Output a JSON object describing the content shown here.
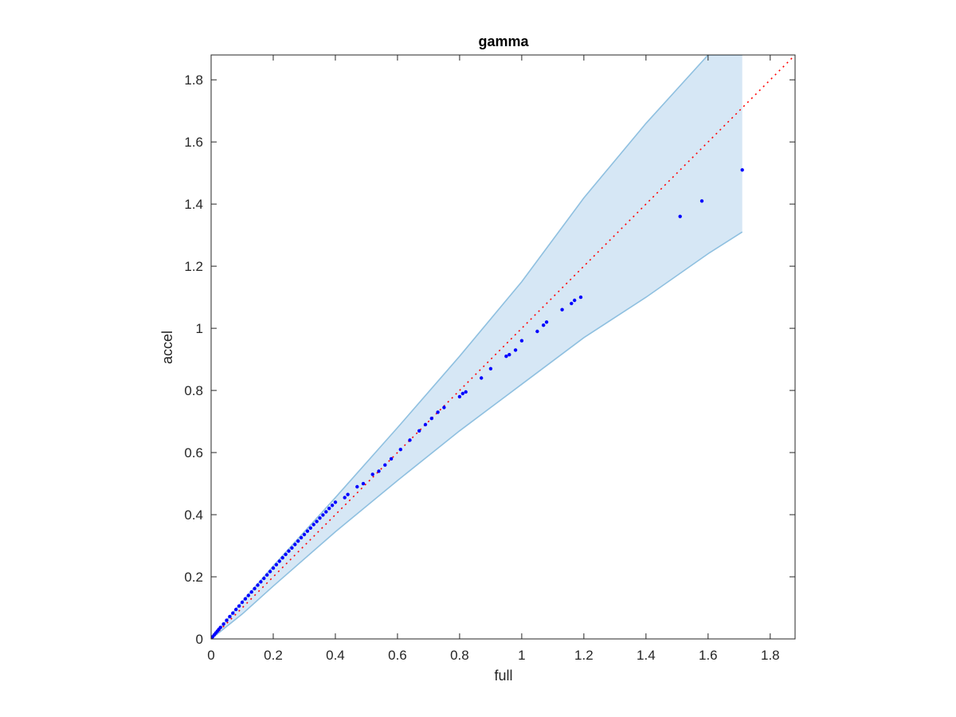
{
  "chart_data": {
    "type": "scatter",
    "title": "gamma",
    "xlabel": "full",
    "ylabel": "accel",
    "xlim": [
      0,
      1.88
    ],
    "ylim": [
      0,
      1.88
    ],
    "xticks": [
      0,
      0.2,
      0.4,
      0.6,
      0.8,
      1,
      1.2,
      1.4,
      1.6,
      1.8
    ],
    "yticks": [
      0,
      0.2,
      0.4,
      0.6,
      0.8,
      1,
      1.2,
      1.4,
      1.6,
      1.8
    ],
    "xtick_labels": [
      "0",
      "0.2",
      "0.4",
      "0.6",
      "0.8",
      "1",
      "1.2",
      "1.4",
      "1.6",
      "1.8"
    ],
    "ytick_labels": [
      "0",
      "0.2",
      "0.4",
      "0.6",
      "0.8",
      "1",
      "1.2",
      "1.4",
      "1.6",
      "1.8"
    ],
    "grid": false,
    "colors": {
      "points": "#0000ff",
      "reference_line": "#ff0000",
      "band_fill": "#d6e7f5",
      "band_edge": "#8fc0e0"
    },
    "reference_line": {
      "x": [
        0,
        1.88
      ],
      "y": [
        0,
        1.88
      ],
      "style": "dotted"
    },
    "band": {
      "upper": {
        "x": [
          0,
          0.1,
          0.2,
          0.4,
          0.6,
          0.8,
          1.0,
          1.2,
          1.4,
          1.6,
          1.71
        ],
        "y": [
          0,
          0.12,
          0.235,
          0.455,
          0.68,
          0.91,
          1.15,
          1.42,
          1.66,
          1.88,
          1.88
        ]
      },
      "lower": {
        "x": [
          0,
          0.1,
          0.2,
          0.4,
          0.6,
          0.8,
          1.0,
          1.2,
          1.4,
          1.6,
          1.71
        ],
        "y": [
          0,
          0.08,
          0.17,
          0.345,
          0.51,
          0.67,
          0.82,
          0.97,
          1.1,
          1.24,
          1.31
        ]
      }
    },
    "series": [
      {
        "x": [
          0.005,
          0.01,
          0.015,
          0.02,
          0.025,
          0.03,
          0.04,
          0.05,
          0.06,
          0.07,
          0.08,
          0.09,
          0.1,
          0.11,
          0.12,
          0.13,
          0.14,
          0.15,
          0.16,
          0.17,
          0.18,
          0.19,
          0.2,
          0.21,
          0.22,
          0.23,
          0.24,
          0.25,
          0.26,
          0.27,
          0.28,
          0.29,
          0.3,
          0.31,
          0.32,
          0.33,
          0.34,
          0.35,
          0.36,
          0.37,
          0.38,
          0.39,
          0.4,
          0.43,
          0.44,
          0.47,
          0.49,
          0.52,
          0.54,
          0.56,
          0.58,
          0.61,
          0.64,
          0.67,
          0.69,
          0.71,
          0.73,
          0.75,
          0.8,
          0.81,
          0.82,
          0.87,
          0.9,
          0.95,
          0.96,
          0.98,
          1.0,
          1.05,
          1.07,
          1.08,
          1.13,
          1.16,
          1.17,
          1.19,
          1.51,
          1.58,
          1.71
        ],
        "y": [
          0.007,
          0.013,
          0.019,
          0.025,
          0.031,
          0.037,
          0.048,
          0.06,
          0.072,
          0.083,
          0.095,
          0.106,
          0.118,
          0.129,
          0.14,
          0.151,
          0.162,
          0.173,
          0.184,
          0.195,
          0.206,
          0.217,
          0.228,
          0.239,
          0.25,
          0.261,
          0.272,
          0.283,
          0.293,
          0.304,
          0.315,
          0.326,
          0.336,
          0.347,
          0.357,
          0.368,
          0.378,
          0.389,
          0.399,
          0.409,
          0.42,
          0.43,
          0.44,
          0.455,
          0.465,
          0.49,
          0.5,
          0.53,
          0.54,
          0.56,
          0.58,
          0.61,
          0.64,
          0.67,
          0.69,
          0.71,
          0.73,
          0.745,
          0.78,
          0.79,
          0.795,
          0.84,
          0.87,
          0.91,
          0.915,
          0.93,
          0.96,
          0.99,
          1.01,
          1.02,
          1.06,
          1.08,
          1.09,
          1.1,
          1.36,
          1.41,
          1.51
        ]
      }
    ]
  }
}
